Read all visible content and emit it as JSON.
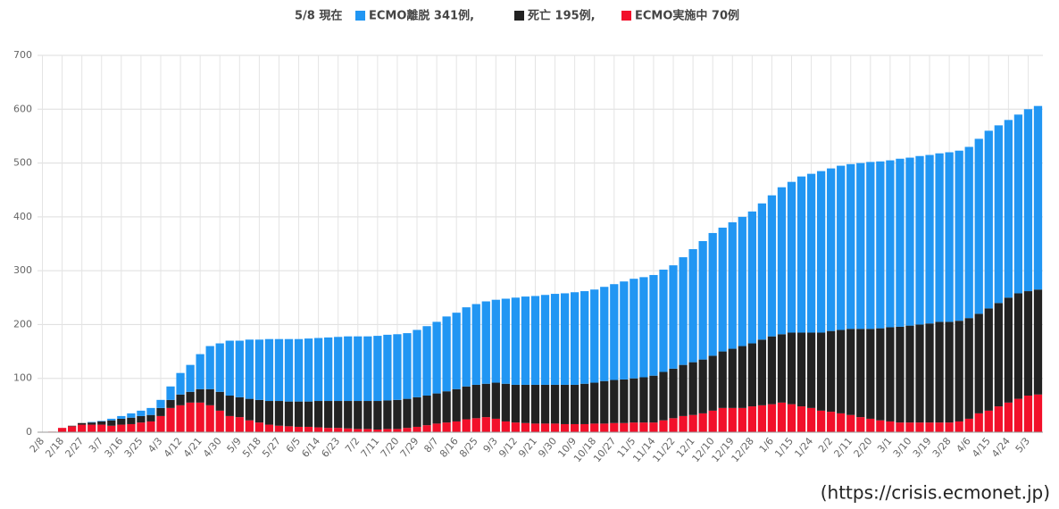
{
  "chart_data": {
    "type": "stacked_bar",
    "title": "5/8 現在",
    "categories": [
      "2/8",
      null,
      "2/18",
      null,
      "2/27",
      null,
      "3/7",
      null,
      "3/16",
      null,
      "3/25",
      null,
      "4/3",
      null,
      "4/12",
      null,
      "4/21",
      null,
      "4/30",
      null,
      "5/9",
      null,
      "5/18",
      null,
      "5/27",
      null,
      "6/5",
      null,
      "6/14",
      null,
      "6/23",
      null,
      "7/2",
      null,
      "7/11",
      null,
      "7/20",
      null,
      "7/29",
      null,
      "8/7",
      null,
      "8/16",
      null,
      "8/25",
      null,
      "9/3",
      null,
      "9/12",
      null,
      "9/21",
      null,
      "9/30",
      null,
      "10/9",
      null,
      "10/18",
      null,
      "10/27",
      null,
      "11/5",
      null,
      "11/14",
      null,
      "11/22",
      null,
      "12/1",
      null,
      "12/10",
      null,
      "12/19",
      null,
      "12/28",
      null,
      "1/6",
      null,
      "1/15",
      null,
      "1/24",
      null,
      "2/2",
      null,
      "2/11",
      null,
      "2/20",
      null,
      "3/1",
      null,
      "3/10",
      null,
      "3/19",
      null,
      "3/28",
      null,
      "4/6",
      null,
      "4/15",
      null,
      "4/24",
      null,
      "5/3",
      null
    ],
    "series": [
      {
        "name": "ECMO離脱 341例,",
        "color": "#2196f3",
        "values": [
          0,
          0,
          0,
          0,
          0,
          1,
          1,
          3,
          5,
          8,
          10,
          13,
          15,
          25,
          40,
          50,
          65,
          80,
          90,
          102,
          105,
          110,
          112,
          115,
          115,
          116,
          116,
          117,
          117,
          118,
          119,
          120,
          120,
          120,
          121,
          122,
          122,
          122,
          125,
          129,
          133,
          139,
          142,
          147,
          150,
          153,
          154,
          158,
          162,
          164,
          165,
          167,
          169,
          170,
          172,
          172,
          173,
          175,
          178,
          182,
          185,
          186,
          187,
          190,
          192,
          200,
          210,
          220,
          228,
          230,
          235,
          240,
          245,
          253,
          262,
          273,
          280,
          290,
          295,
          300,
          302,
          305,
          306,
          308,
          310,
          310,
          310,
          312,
          312,
          313,
          313,
          313,
          315,
          316,
          318,
          325,
          330,
          330,
          330,
          332,
          338,
          341
        ]
      },
      {
        "name": "死亡 195例,",
        "color": "#222222",
        "values": [
          0,
          0,
          0,
          1,
          3,
          4,
          6,
          10,
          11,
          12,
          12,
          12,
          15,
          15,
          20,
          20,
          25,
          30,
          35,
          38,
          37,
          40,
          42,
          44,
          46,
          46,
          47,
          47,
          49,
          50,
          50,
          51,
          52,
          52,
          53,
          53,
          54,
          54,
          55,
          55,
          56,
          58,
          60,
          61,
          62,
          62,
          67,
          70,
          70,
          71,
          72,
          72,
          72,
          73,
          73,
          75,
          76,
          79,
          80,
          81,
          82,
          84,
          87,
          90,
          92,
          95,
          98,
          100,
          102,
          105,
          110,
          115,
          117,
          122,
          126,
          127,
          133,
          137,
          140,
          145,
          150,
          155,
          160,
          164,
          167,
          171,
          175,
          178,
          180,
          182,
          184,
          187,
          187,
          187,
          187,
          185,
          190,
          192,
          195,
          196,
          194,
          195
        ]
      },
      {
        "name": "ECMO実施中 70例",
        "color": "#f2102a",
        "values": [
          0,
          1,
          8,
          11,
          14,
          14,
          14,
          12,
          14,
          15,
          18,
          20,
          30,
          45,
          50,
          55,
          55,
          50,
          40,
          30,
          28,
          22,
          18,
          14,
          12,
          11,
          10,
          10,
          9,
          8,
          8,
          7,
          6,
          6,
          5,
          6,
          6,
          8,
          10,
          13,
          16,
          18,
          20,
          24,
          26,
          28,
          25,
          20,
          18,
          17,
          16,
          16,
          16,
          15,
          15,
          15,
          16,
          16,
          17,
          17,
          18,
          18,
          18,
          22,
          26,
          30,
          32,
          35,
          40,
          45,
          45,
          45,
          48,
          50,
          52,
          55,
          52,
          48,
          45,
          40,
          38,
          35,
          32,
          28,
          25,
          22,
          20,
          18,
          18,
          18,
          18,
          18,
          18,
          20,
          25,
          35,
          40,
          48,
          55,
          62,
          68,
          70
        ]
      }
    ],
    "ylim": [
      0,
      700
    ],
    "yticks": [
      0,
      100,
      200,
      300,
      400,
      500,
      600,
      700
    ],
    "grid": true,
    "source": "(https://crisis.ecmonet.jp)"
  }
}
